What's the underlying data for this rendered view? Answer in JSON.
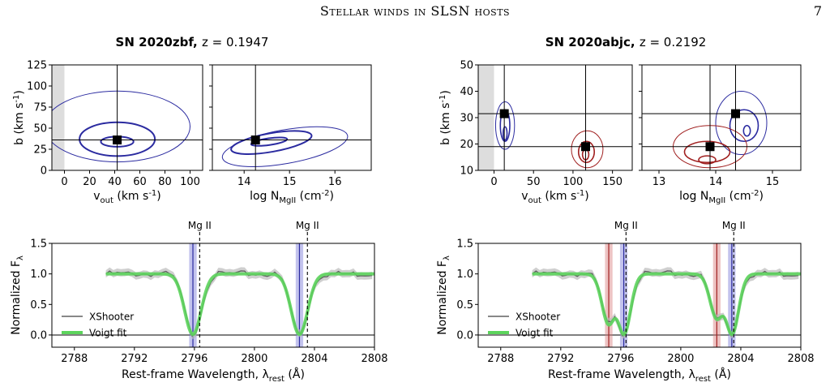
{
  "page": {
    "running_head": "Stellar winds in SLSN hosts",
    "page_number": "7"
  },
  "colors": {
    "data": "#606060",
    "fit": "#5cd45c",
    "blue": "#2b2ba0",
    "red": "#a02020",
    "shade": "#dddddd",
    "blueband": "#7a7ad8",
    "redband": "#d87a7a"
  },
  "panels": [
    {
      "title_name": "SN 2020zbf,",
      "title_z": "z = 0.1947",
      "vb": {
        "xlabel": "v_out (km s^-1)",
        "ylabel": "b (km s^-1)",
        "xticks": [
          "0",
          "20",
          "40",
          "60",
          "80",
          "100"
        ],
        "yticks": [
          "0",
          "25",
          "50",
          "75",
          "100",
          "125"
        ],
        "xlim": [
          -10,
          110
        ],
        "ylim": [
          0,
          125
        ]
      },
      "nb": {
        "xlabel": "log N_MgII (cm^-2)",
        "xticks": [
          "14",
          "15",
          "16"
        ],
        "xlim": [
          13.3,
          16.8
        ]
      },
      "spec": {
        "ylabel": "Normalized F_λ",
        "xlabel": "Rest-frame Wavelength, λ_rest (Å)",
        "xticks": [
          "2788",
          "2792",
          "2796",
          "2800",
          "2804",
          "2808"
        ],
        "yticks": [
          "0.0",
          "0.5",
          "1.0",
          "1.5"
        ],
        "line_labels": [
          "Mg II",
          "Mg II"
        ],
        "legend": [
          "XShooter",
          "Voigt fit"
        ]
      }
    },
    {
      "title_name": "SN 2020abjc,",
      "title_z": "z = 0.2192",
      "vb": {
        "xlabel": "v_out (km s^-1)",
        "ylabel": "b (km s^-1)",
        "xticks": [
          "0",
          "50",
          "100",
          "150"
        ],
        "yticks": [
          "10",
          "20",
          "30",
          "40",
          "50"
        ],
        "xlim": [
          -20,
          175
        ],
        "ylim": [
          10,
          50
        ]
      },
      "nb": {
        "xlabel": "log N_MgII (cm^-2)",
        "xticks": [
          "13",
          "14",
          "15"
        ],
        "xlim": [
          12.7,
          15.5
        ]
      },
      "spec": {
        "ylabel": "Normalized F_λ",
        "xlabel": "Rest-frame Wavelength, λ_rest (Å)",
        "xticks": [
          "2788",
          "2792",
          "2796",
          "2800",
          "2804",
          "2808"
        ],
        "yticks": [
          "0.0",
          "0.5",
          "1.0",
          "1.5"
        ],
        "line_labels": [
          "Mg II",
          "Mg II"
        ],
        "legend": [
          "XShooter",
          "Voigt fit"
        ]
      }
    }
  ],
  "chart_data": [
    {
      "type": "scatter",
      "title": "SN 2020zbf, z = 0.1947",
      "xlabel": "v_out (km s^-1)",
      "ylabel": "b (km s^-1)",
      "xlim": [
        -10,
        110
      ],
      "ylim": [
        0,
        125
      ],
      "markers": [
        {
          "x": 42,
          "y": 36,
          "color": "#000000"
        }
      ],
      "crosshair": {
        "x": 42,
        "y": 36
      },
      "contours": [
        {
          "color": "#2b2ba0",
          "width": 1,
          "cx": 42,
          "cy": 52,
          "rx": 58,
          "ry": 42
        },
        {
          "color": "#2b2ba0",
          "width": 2,
          "cx": 42,
          "cy": 37,
          "rx": 30,
          "ry": 20
        },
        {
          "color": "#2b2ba0",
          "width": 2,
          "cx": 42,
          "cy": 34,
          "rx": 13,
          "ry": 6
        }
      ]
    },
    {
      "type": "scatter",
      "title": "SN 2020zbf, z = 0.1947",
      "xlabel": "log N_MgII (cm^-2)",
      "ylabel": "b (km s^-1)",
      "xlim": [
        13.3,
        16.8
      ],
      "ylim": [
        0,
        125
      ],
      "markers": [
        {
          "x": 14.25,
          "y": 36,
          "color": "#000000"
        }
      ],
      "crosshair": {
        "x": 14.25,
        "y": 36
      },
      "contours": [
        {
          "color": "#2b2ba0",
          "width": 1,
          "cx": 14.9,
          "cy": 28,
          "rx": 1.4,
          "ry": 20,
          "rot": -10
        },
        {
          "color": "#2b2ba0",
          "width": 2,
          "cx": 14.6,
          "cy": 33,
          "rx": 0.9,
          "ry": 11,
          "rot": -10
        },
        {
          "color": "#2b2ba0",
          "width": 2,
          "cx": 14.55,
          "cy": 34,
          "rx": 0.4,
          "ry": 4,
          "rot": -8
        }
      ]
    },
    {
      "type": "line",
      "title": "SN 2020zbf, z = 0.1947",
      "xlabel": "Rest-frame Wavelength, λ_rest (Å)",
      "ylabel": "Normalized F_λ",
      "xlim": [
        2786.5,
        2808
      ],
      "ylim": [
        -0.2,
        1.5
      ],
      "data_range": [
        2790.1,
        2808
      ],
      "absorptions": [
        {
          "center": 2795.9,
          "depth": 0.99,
          "sigma": 0.55,
          "color": "#2b2ba0"
        },
        {
          "center": 2803.0,
          "depth": 0.99,
          "sigma": 0.55,
          "color": "#2b2ba0"
        }
      ],
      "rest_lines": [
        2796.35,
        2803.53
      ],
      "series": [
        {
          "name": "XShooter",
          "color": "#606060"
        },
        {
          "name": "Voigt fit",
          "color": "#5cd45c"
        }
      ],
      "legend": "lower-left"
    },
    {
      "type": "scatter",
      "title": "SN 2020abjc, z = 0.2192",
      "xlabel": "v_out (km s^-1)",
      "ylabel": "b (km s^-1)",
      "xlim": [
        -20,
        175
      ],
      "ylim": [
        10,
        50
      ],
      "markers": [
        {
          "x": 13,
          "y": 31.5,
          "color": "#000000"
        },
        {
          "x": 116,
          "y": 19,
          "color": "#000000"
        }
      ],
      "crosshair": {
        "x": 13,
        "y": 31.5
      },
      "crosshair2": {
        "x": 116,
        "y": 19
      },
      "contours": [
        {
          "color": "#2b2ba0",
          "width": 1,
          "cx": 14,
          "cy": 27,
          "rx": 12,
          "ry": 9
        },
        {
          "color": "#2b2ba0",
          "width": 1.6,
          "cx": 14,
          "cy": 27,
          "rx": 6,
          "ry": 6
        },
        {
          "color": "#2b2ba0",
          "width": 1.6,
          "cx": 14,
          "cy": 24,
          "rx": 2.5,
          "ry": 2.5
        },
        {
          "color": "#a02020",
          "width": 1,
          "cx": 118,
          "cy": 18,
          "rx": 20,
          "ry": 7
        },
        {
          "color": "#a02020",
          "width": 1.6,
          "cx": 117,
          "cy": 17,
          "rx": 10,
          "ry": 4
        },
        {
          "color": "#a02020",
          "width": 1.6,
          "cx": 116,
          "cy": 16,
          "rx": 4,
          "ry": 2
        }
      ]
    },
    {
      "type": "scatter",
      "title": "SN 2020abjc, z = 0.2192",
      "xlabel": "log N_MgII (cm^-2)",
      "ylabel": "b (km s^-1)",
      "xlim": [
        12.7,
        15.5
      ],
      "ylim": [
        10,
        50
      ],
      "markers": [
        {
          "x": 14.35,
          "y": 31.5,
          "color": "#000000"
        },
        {
          "x": 13.9,
          "y": 19,
          "color": "#000000"
        }
      ],
      "crosshair": {
        "x": 14.35,
        "y": 31.5
      },
      "crosshair2": {
        "x": 13.9,
        "y": 19
      },
      "contours": [
        {
          "color": "#2b2ba0",
          "width": 1,
          "cx": 14.45,
          "cy": 28,
          "rx": 0.45,
          "ry": 12
        },
        {
          "color": "#2b2ba0",
          "width": 1.6,
          "cx": 14.5,
          "cy": 27,
          "rx": 0.25,
          "ry": 6
        },
        {
          "color": "#2b2ba0",
          "width": 1.6,
          "cx": 14.55,
          "cy": 25,
          "rx": 0.06,
          "ry": 2
        },
        {
          "color": "#a02020",
          "width": 1,
          "cx": 13.9,
          "cy": 19,
          "rx": 0.65,
          "ry": 8
        },
        {
          "color": "#a02020",
          "width": 1.6,
          "cx": 13.85,
          "cy": 17,
          "rx": 0.4,
          "ry": 4
        },
        {
          "color": "#a02020",
          "width": 1.6,
          "cx": 13.85,
          "cy": 14,
          "rx": 0.15,
          "ry": 1.5
        }
      ]
    },
    {
      "type": "line",
      "title": "SN 2020abjc, z = 0.2192",
      "xlabel": "Rest-frame Wavelength, λ_rest (Å)",
      "ylabel": "Normalized F_λ",
      "xlim": [
        2786.5,
        2808
      ],
      "ylim": [
        -0.2,
        1.5
      ],
      "data_range": [
        2790.1,
        2808
      ],
      "absorptions": [
        {
          "center": 2795.2,
          "depth": 0.82,
          "sigma": 0.45,
          "color": "#a02020"
        },
        {
          "center": 2796.2,
          "depth": 0.99,
          "sigma": 0.45,
          "color": "#2b2ba0"
        },
        {
          "center": 2802.4,
          "depth": 0.72,
          "sigma": 0.45,
          "color": "#a02020"
        },
        {
          "center": 2803.4,
          "depth": 0.99,
          "sigma": 0.45,
          "color": "#2b2ba0"
        }
      ],
      "rest_lines": [
        2796.35,
        2803.53
      ],
      "series": [
        {
          "name": "XShooter",
          "color": "#606060"
        },
        {
          "name": "Voigt fit",
          "color": "#5cd45c"
        }
      ],
      "legend": "lower-left"
    }
  ]
}
